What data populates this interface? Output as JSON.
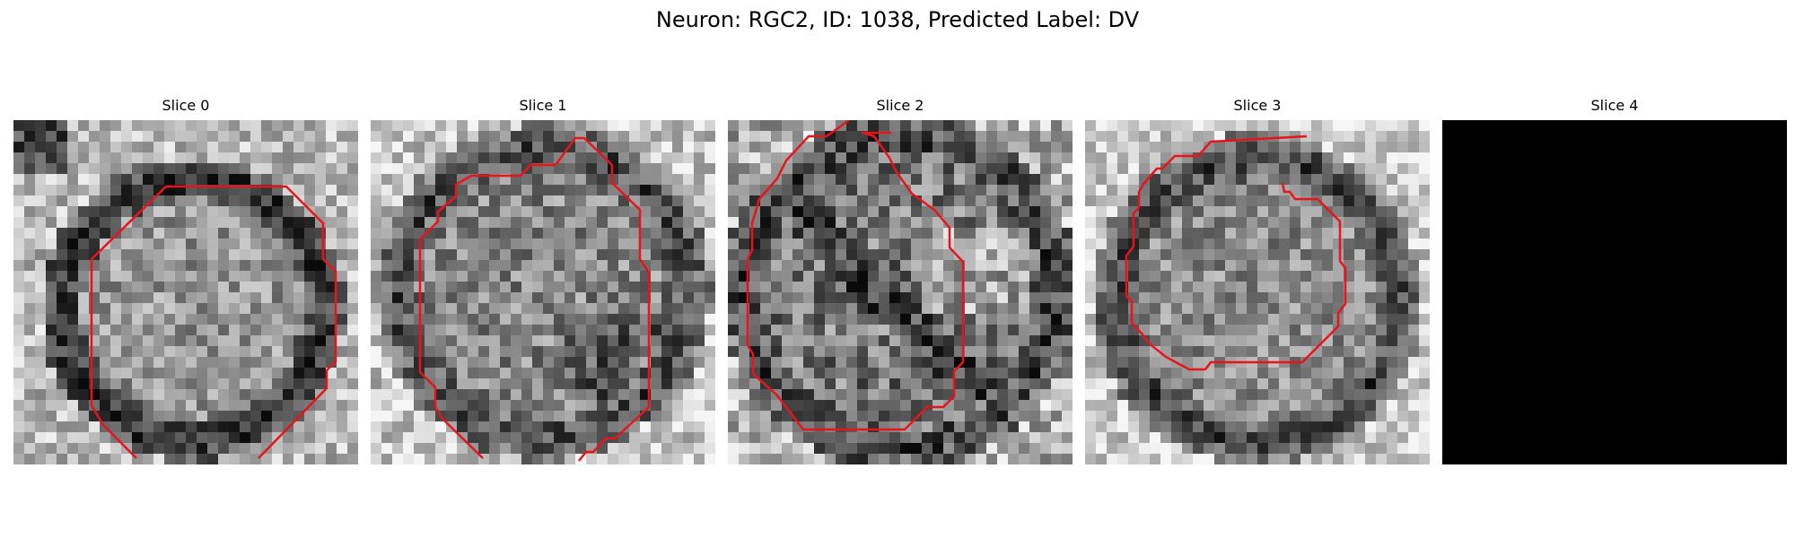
{
  "figure": {
    "title": "Neuron: RGC2, ID: 1038, Predicted Label: DV"
  },
  "panels": [
    {
      "title": "Slice 0",
      "kind": "image",
      "contour_color": "#e8141c"
    },
    {
      "title": "Slice 1",
      "kind": "image",
      "contour_color": "#e8141c"
    },
    {
      "title": "Slice 2",
      "kind": "image",
      "contour_color": "#e8141c"
    },
    {
      "title": "Slice 3",
      "kind": "image",
      "contour_color": "#e8141c"
    },
    {
      "title": "Slice 4",
      "kind": "black",
      "contour_color": "#e8141c"
    }
  ]
}
